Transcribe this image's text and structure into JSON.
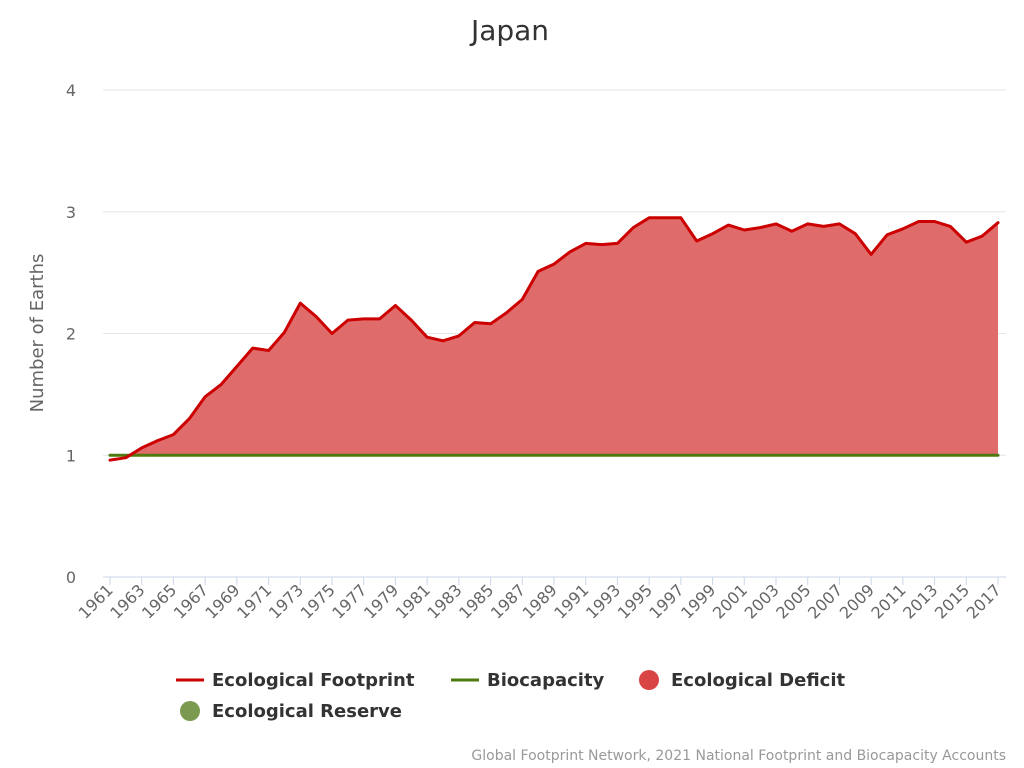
{
  "chart_data": {
    "type": "area",
    "title": "Japan",
    "xlabel": "",
    "ylabel": "Number of Earths",
    "ylim": [
      0,
      4
    ],
    "yticks": [
      "0",
      "1",
      "2",
      "3",
      "4"
    ],
    "x": [
      1961,
      1962,
      1963,
      1964,
      1965,
      1966,
      1967,
      1968,
      1969,
      1970,
      1971,
      1972,
      1973,
      1974,
      1975,
      1976,
      1977,
      1978,
      1979,
      1980,
      1981,
      1982,
      1983,
      1984,
      1985,
      1986,
      1987,
      1988,
      1989,
      1990,
      1991,
      1992,
      1993,
      1994,
      1995,
      1996,
      1997,
      1998,
      1999,
      2000,
      2001,
      2002,
      2003,
      2004,
      2005,
      2006,
      2007,
      2008,
      2009,
      2010,
      2011,
      2012,
      2013,
      2014,
      2015,
      2016,
      2017
    ],
    "xtick_labels": [
      "1961",
      "1963",
      "1965",
      "1967",
      "1969",
      "1971",
      "1973",
      "1975",
      "1977",
      "1979",
      "1981",
      "1983",
      "1985",
      "1987",
      "1989",
      "1991",
      "1993",
      "1995",
      "1997",
      "1999",
      "2001",
      "2003",
      "2005",
      "2007",
      "2009",
      "2011",
      "2013",
      "2015",
      "2017"
    ],
    "grid": true,
    "legend_position": "bottom",
    "series": [
      {
        "name": "Ecological Footprint",
        "color": "#cc0000",
        "values": [
          0.96,
          0.98,
          1.06,
          1.12,
          1.17,
          1.3,
          1.48,
          1.58,
          1.73,
          1.88,
          1.86,
          2.01,
          2.25,
          2.14,
          2.0,
          2.11,
          2.12,
          2.12,
          2.23,
          2.11,
          1.97,
          1.94,
          1.98,
          2.09,
          2.08,
          2.17,
          2.28,
          2.51,
          2.57,
          2.67,
          2.74,
          2.73,
          2.74,
          2.87,
          2.95,
          2.95,
          2.95,
          2.76,
          2.82,
          2.89,
          2.85,
          2.87,
          2.9,
          2.84,
          2.9,
          2.88,
          2.9,
          2.82,
          2.65,
          2.81,
          2.86,
          2.92,
          2.92,
          2.88,
          2.75,
          2.8,
          2.91
        ]
      },
      {
        "name": "Biocapacity",
        "color": "#4f7a0f",
        "values": [
          1,
          1,
          1,
          1,
          1,
          1,
          1,
          1,
          1,
          1,
          1,
          1,
          1,
          1,
          1,
          1,
          1,
          1,
          1,
          1,
          1,
          1,
          1,
          1,
          1,
          1,
          1,
          1,
          1,
          1,
          1,
          1,
          1,
          1,
          1,
          1,
          1,
          1,
          1,
          1,
          1,
          1,
          1,
          1,
          1,
          1,
          1,
          1,
          1,
          1,
          1,
          1,
          1,
          1,
          1,
          1,
          1
        ]
      }
    ],
    "legend": [
      {
        "label": "Ecological Footprint",
        "kind": "line",
        "color": "#cc0000"
      },
      {
        "label": "Biocapacity",
        "kind": "line",
        "color": "#4f7a0f"
      },
      {
        "label": "Ecological Deficit",
        "kind": "dot",
        "color": "#d94545"
      },
      {
        "label": "Ecological Reserve",
        "kind": "dot",
        "color": "#7b9a4f"
      }
    ],
    "deficit_fill_color": "#e06b6b"
  },
  "credits": "Global Footprint Network, 2021 National Footprint and Biocapacity Accounts"
}
